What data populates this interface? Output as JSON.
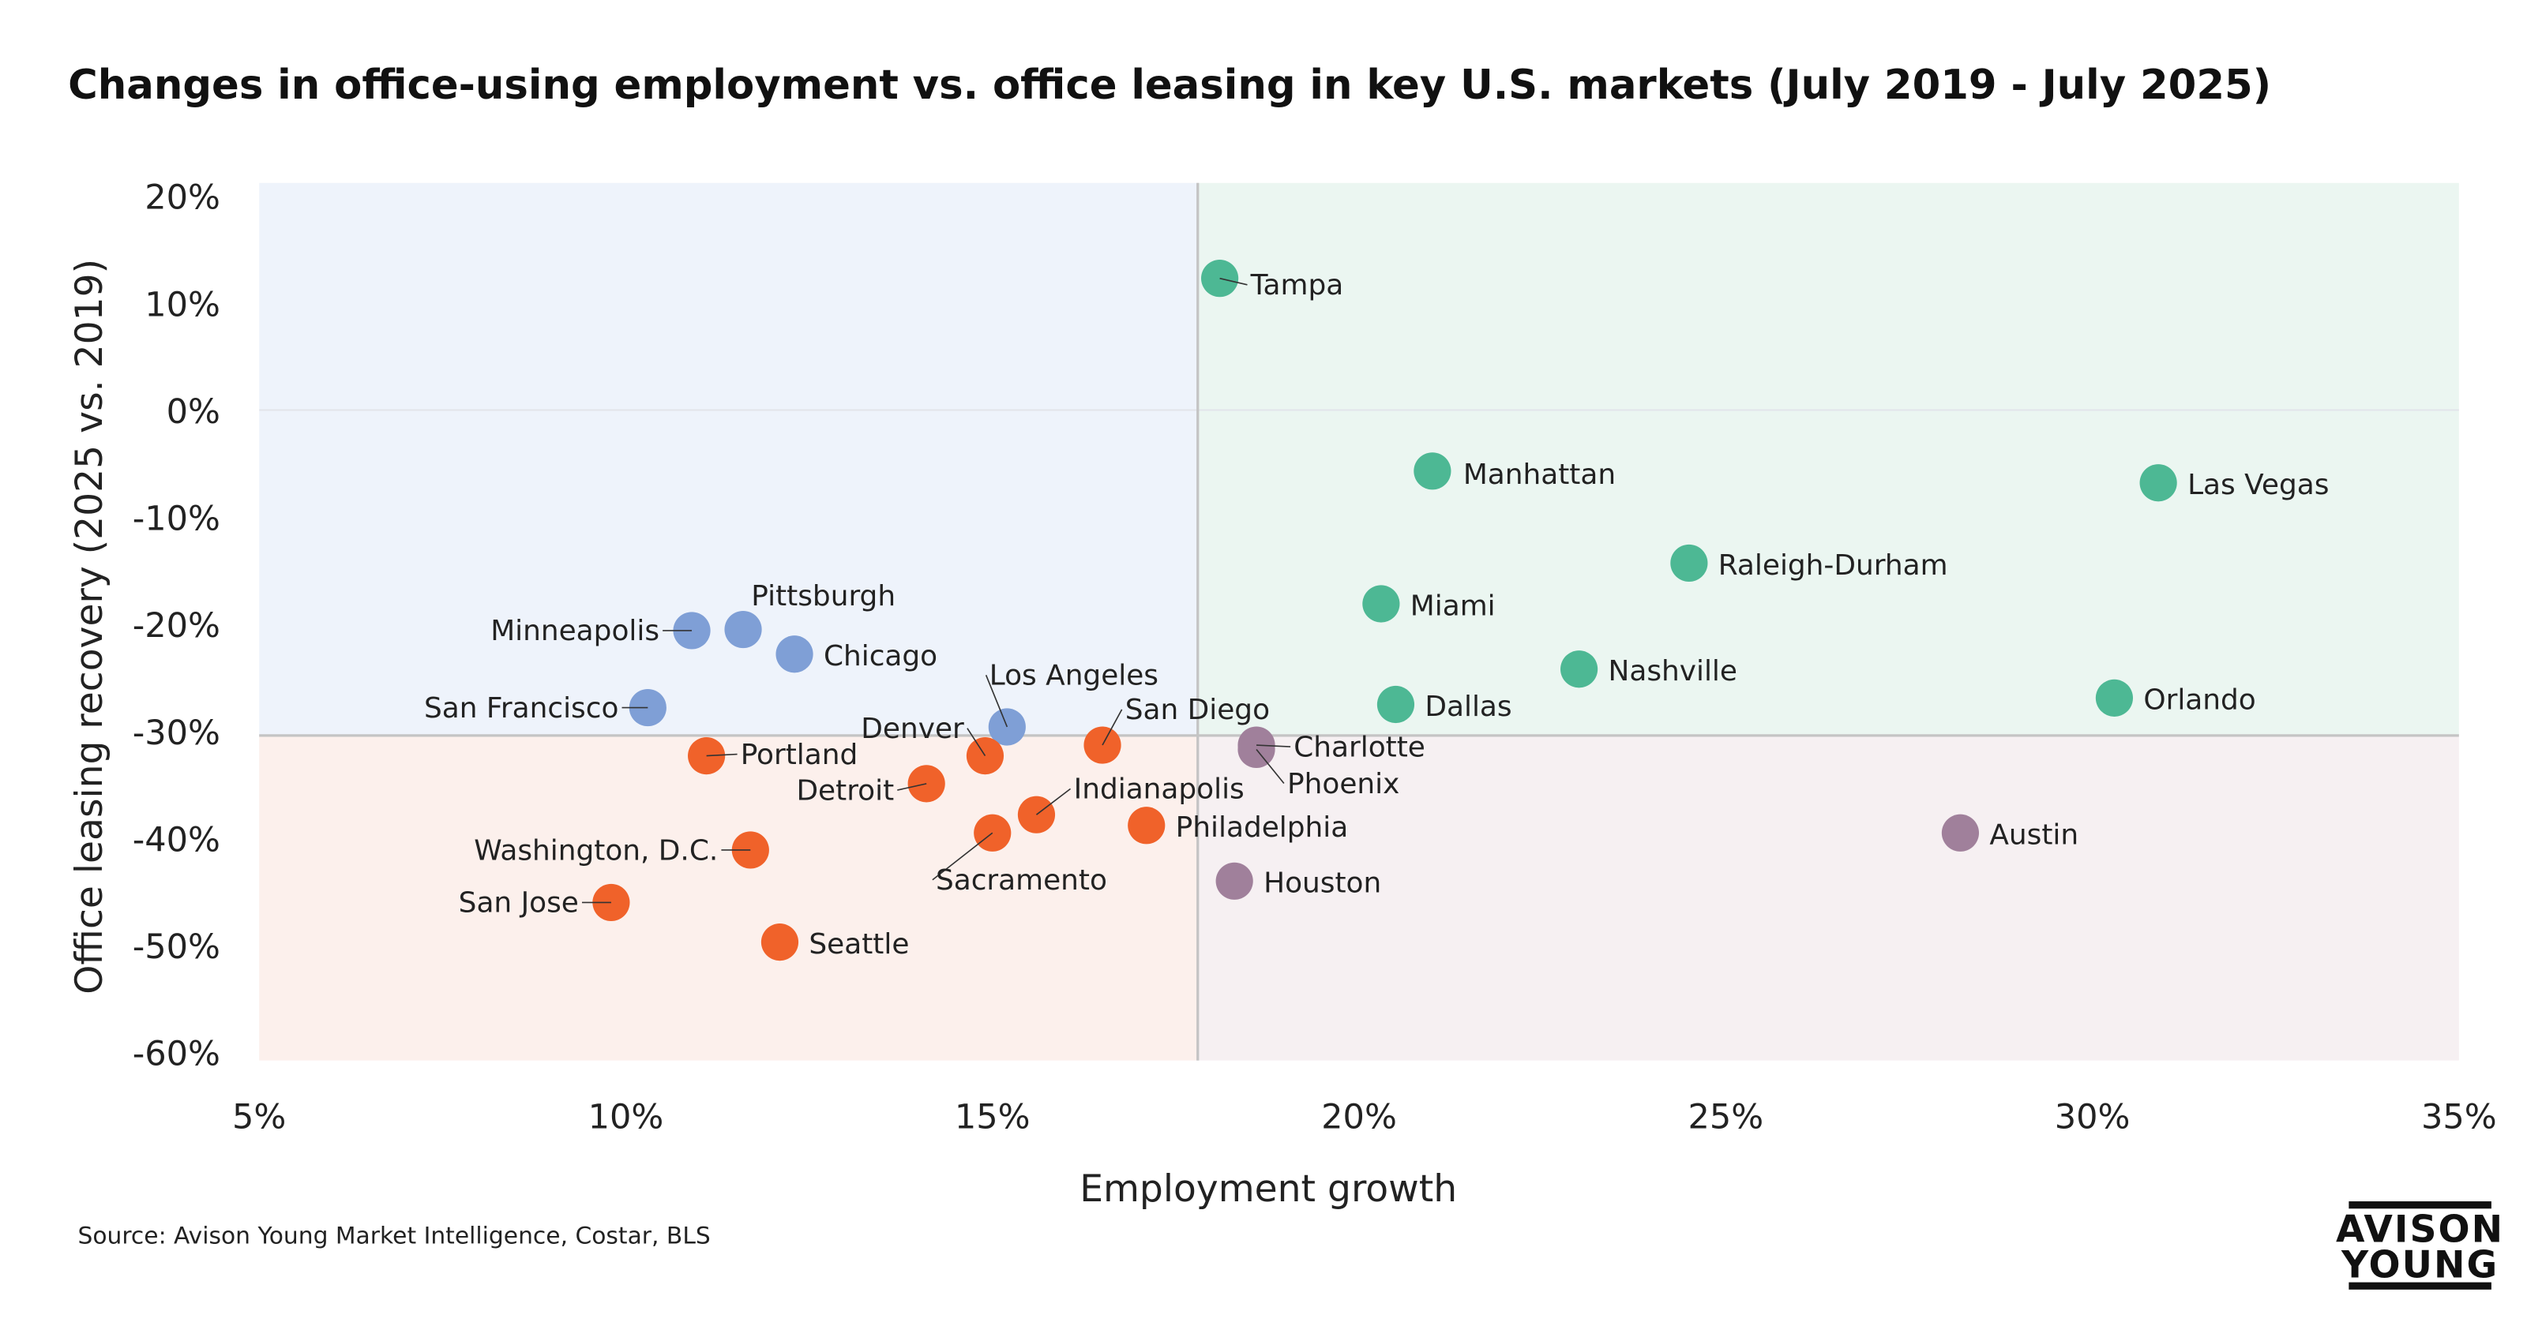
{
  "chart_data": {
    "type": "scatter",
    "title": "Changes in office-using employment vs. office leasing in key U.S. markets (July 2019 - July 2025)",
    "xlabel": "Employment growth",
    "ylabel": "Office leasing recovery (2025 vs. 2019)",
    "xlim": [
      5,
      35
    ],
    "ylim": [
      -60,
      20
    ],
    "x_ticks": [
      "5%",
      "10%",
      "15%",
      "20%",
      "25%",
      "30%",
      "35%"
    ],
    "y_ticks": [
      "20%",
      "10%",
      "0%",
      "-10%",
      "-20%",
      "-30%",
      "-40%",
      "-50%",
      "-60%"
    ],
    "x_tick_values": [
      5,
      10,
      15,
      20,
      25,
      30,
      35
    ],
    "y_tick_values": [
      20,
      10,
      0,
      -10,
      -20,
      -30,
      -40,
      -50,
      -60
    ],
    "grid": "horizontal at 0% only",
    "quadrant_dividers": {
      "x": 17.8,
      "y": -30.4
    },
    "quadrant_colors": {
      "top_left": "#eef3fb",
      "top_right": "#ebf6f1",
      "bottom_left": "#fcf0ec",
      "bottom_right": "#f6f0f2"
    },
    "group_colors": {
      "blue": "#7f9fd6",
      "green": "#4db894",
      "orange": "#f0622a",
      "purple": "#a0809b"
    },
    "points": [
      {
        "name": "Tampa",
        "x": 18.1,
        "y": 12.3,
        "group": "green"
      },
      {
        "name": "Manhattan",
        "x": 21.0,
        "y": -5.7,
        "group": "green"
      },
      {
        "name": "Las Vegas",
        "x": 30.9,
        "y": -6.8,
        "group": "green"
      },
      {
        "name": "Raleigh-Durham",
        "x": 24.5,
        "y": -14.3,
        "group": "green"
      },
      {
        "name": "Miami",
        "x": 20.3,
        "y": -18.1,
        "group": "green"
      },
      {
        "name": "Nashville",
        "x": 23.0,
        "y": -24.2,
        "group": "green"
      },
      {
        "name": "Dallas",
        "x": 20.5,
        "y": -27.5,
        "group": "green"
      },
      {
        "name": "Orlando",
        "x": 30.3,
        "y": -26.9,
        "group": "green"
      },
      {
        "name": "Phoenix",
        "x": 18.6,
        "y": -31.7,
        "group": "purple"
      },
      {
        "name": "Charlotte",
        "x": 18.6,
        "y": -31.3,
        "group": "purple"
      },
      {
        "name": "Austin",
        "x": 28.2,
        "y": -39.5,
        "group": "purple"
      },
      {
        "name": "Houston",
        "x": 18.3,
        "y": -44.0,
        "group": "purple"
      },
      {
        "name": "Pittsburgh",
        "x": 11.6,
        "y": -20.5,
        "group": "blue"
      },
      {
        "name": "Minneapolis",
        "x": 10.9,
        "y": -20.6,
        "group": "blue"
      },
      {
        "name": "Chicago",
        "x": 12.3,
        "y": -22.8,
        "group": "blue"
      },
      {
        "name": "San Francisco",
        "x": 10.3,
        "y": -27.8,
        "group": "blue"
      },
      {
        "name": "Los Angeles",
        "x": 15.2,
        "y": -29.6,
        "group": "blue"
      },
      {
        "name": "Portland",
        "x": 11.1,
        "y": -32.3,
        "group": "orange"
      },
      {
        "name": "Denver",
        "x": 14.9,
        "y": -32.3,
        "group": "orange"
      },
      {
        "name": "San Diego",
        "x": 16.5,
        "y": -31.3,
        "group": "orange"
      },
      {
        "name": "Detroit",
        "x": 14.1,
        "y": -34.9,
        "group": "orange"
      },
      {
        "name": "Indianapolis",
        "x": 15.6,
        "y": -37.8,
        "group": "orange"
      },
      {
        "name": "Sacramento",
        "x": 15.0,
        "y": -39.5,
        "group": "orange"
      },
      {
        "name": "Philadelphia",
        "x": 17.1,
        "y": -38.8,
        "group": "orange"
      },
      {
        "name": "Washington, D.C.",
        "x": 11.7,
        "y": -41.1,
        "group": "orange"
      },
      {
        "name": "San Jose",
        "x": 9.8,
        "y": -46.0,
        "group": "orange"
      },
      {
        "name": "Seattle",
        "x": 12.1,
        "y": -49.7,
        "group": "orange"
      }
    ]
  },
  "source": "Source: Avison Young Market Intelligence, Costar, BLS",
  "logo": {
    "line1": "AVISON",
    "line2": "YOUNG"
  }
}
